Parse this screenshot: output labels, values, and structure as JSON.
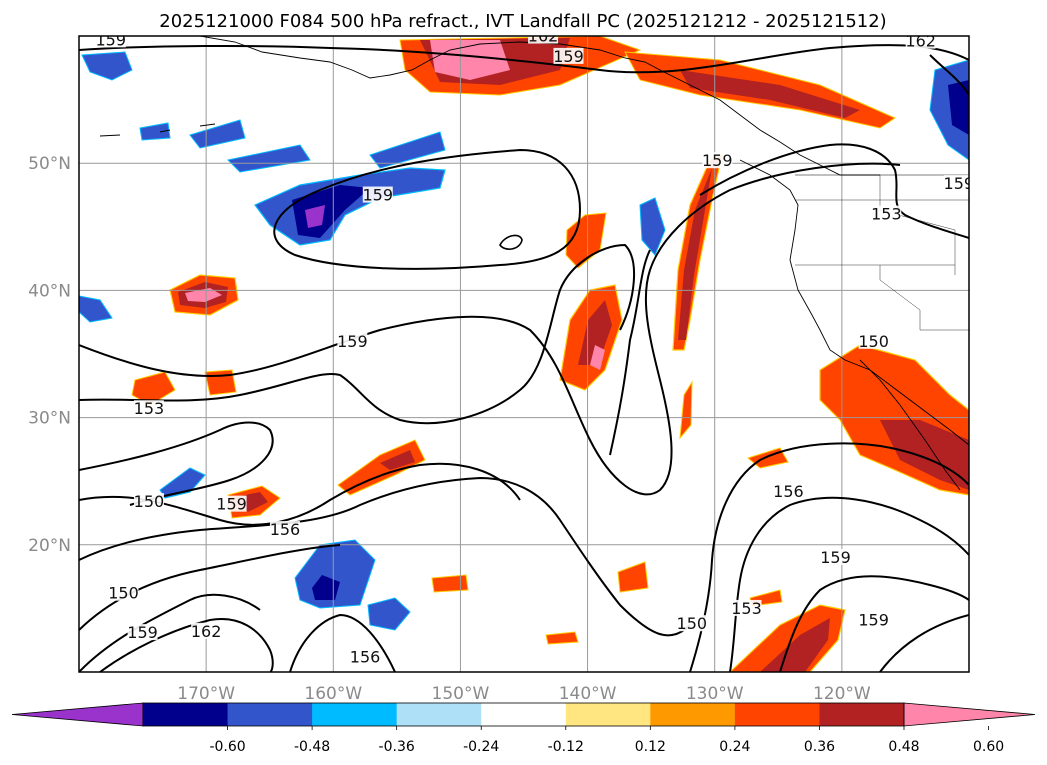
{
  "title": "2025121000 F084 500 hPa refract., IVT Landfall PC (2025121212 - 2025121512)",
  "lat_labels": [
    {
      "lat": 50,
      "text": "50°N"
    },
    {
      "lat": 40,
      "text": "40°N"
    },
    {
      "lat": 30,
      "text": "30°N"
    },
    {
      "lat": 20,
      "text": "20°N"
    }
  ],
  "lon_labels": [
    {
      "lon": -170,
      "text": "170°W"
    },
    {
      "lon": -160,
      "text": "160°W"
    },
    {
      "lon": -150,
      "text": "150°W"
    },
    {
      "lon": -140,
      "text": "140°W"
    },
    {
      "lon": -130,
      "text": "130°W"
    },
    {
      "lon": -120,
      "text": "120°W"
    }
  ],
  "map_extent": {
    "lon_min": -180,
    "lon_max": -110,
    "lat_min": 10,
    "lat_max": 60
  },
  "contour_labels": [
    {
      "text": "159",
      "lon": -177.5,
      "lat": 59.5
    },
    {
      "text": "162",
      "lon": -143.5,
      "lat": 59.8
    },
    {
      "text": "159",
      "lon": -141.5,
      "lat": 58.2
    },
    {
      "text": "162",
      "lon": -113.8,
      "lat": 59.4
    },
    {
      "text": "159",
      "lon": -156.5,
      "lat": 47.3
    },
    {
      "text": "159",
      "lon": -129.8,
      "lat": 50.0
    },
    {
      "text": "153",
      "lon": -116.5,
      "lat": 45.8
    },
    {
      "text": "159",
      "lon": -110.8,
      "lat": 48.2
    },
    {
      "text": "159",
      "lon": -158.5,
      "lat": 35.8
    },
    {
      "text": "150",
      "lon": -117.5,
      "lat": 35.8
    },
    {
      "text": "153",
      "lon": -174.5,
      "lat": 30.5
    },
    {
      "text": "150",
      "lon": -174.5,
      "lat": 23.2
    },
    {
      "text": "159",
      "lon": -168.0,
      "lat": 23.0
    },
    {
      "text": "156",
      "lon": -163.8,
      "lat": 21.0
    },
    {
      "text": "156",
      "lon": -124.2,
      "lat": 24.0
    },
    {
      "text": "159",
      "lon": -120.5,
      "lat": 18.8
    },
    {
      "text": "150",
      "lon": -176.5,
      "lat": 16.0
    },
    {
      "text": "159",
      "lon": -175.0,
      "lat": 12.9
    },
    {
      "text": "162",
      "lon": -170.0,
      "lat": 13.0
    },
    {
      "text": "150",
      "lon": -131.8,
      "lat": 13.6
    },
    {
      "text": "153",
      "lon": -127.5,
      "lat": 14.8
    },
    {
      "text": "156",
      "lon": -157.5,
      "lat": 11.0
    },
    {
      "text": "159",
      "lon": -117.5,
      "lat": 13.9
    }
  ],
  "colorbar": {
    "levels": [
      "-0.60",
      "-0.48",
      "-0.36",
      "-0.24",
      "-0.12",
      "0.12",
      "0.24",
      "0.36",
      "0.48",
      "0.60"
    ],
    "colors": [
      "#9933cc",
      "#00008c",
      "#3355cc",
      "#00bbff",
      "#aee0f8",
      "#ffffff",
      "#ffe680",
      "#ff9900",
      "#ff4400",
      "#b22222",
      "#ff85aa"
    ]
  },
  "colors": {
    "contour_line": "#000000",
    "grid_line": "#999999",
    "coastline": "#000000"
  }
}
